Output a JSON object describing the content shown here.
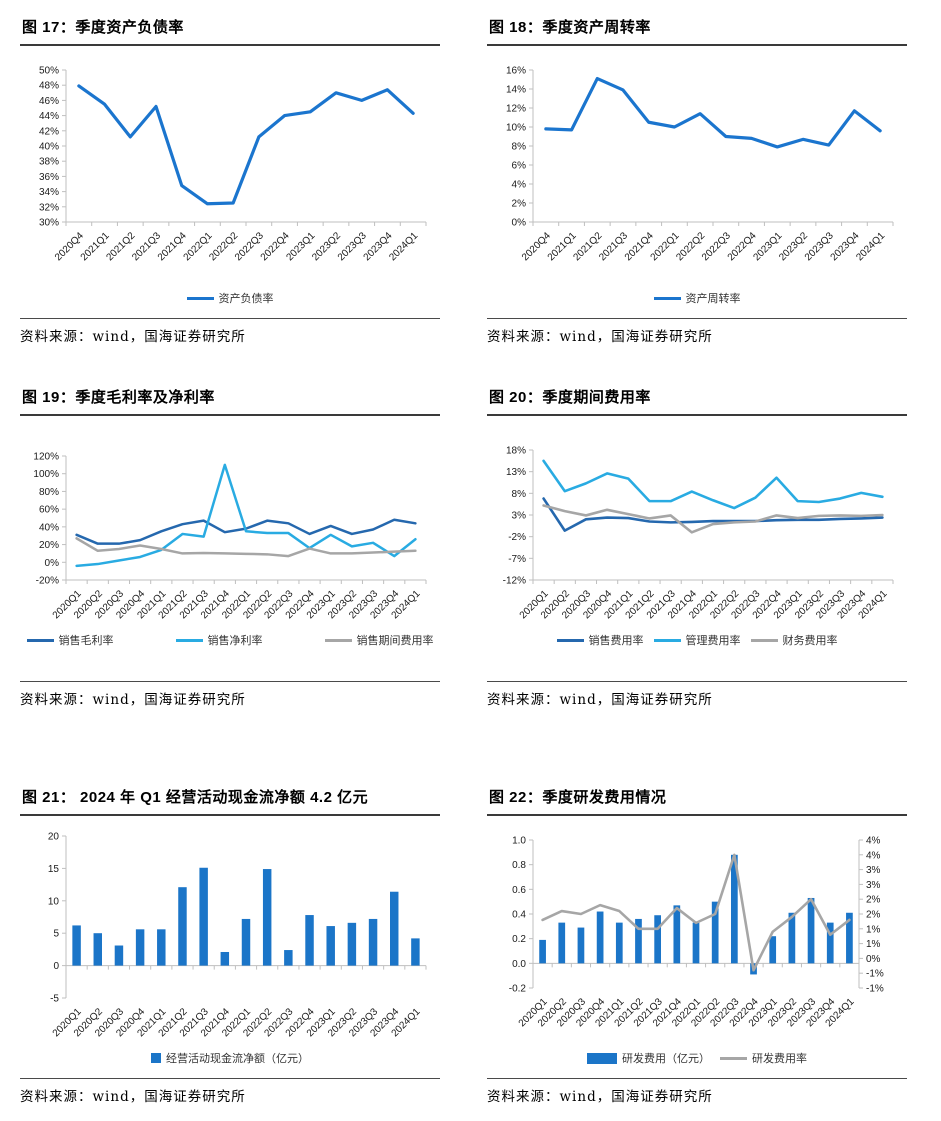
{
  "source_text": "资料来源：wind，国海证券研究所",
  "chart_data": [
    {
      "fig_label": "图 17：季度资产负债率",
      "title": "季度资产负债率",
      "type": "line",
      "categories": [
        "2020Q4",
        "2021Q1",
        "2021Q2",
        "2021Q3",
        "2021Q4",
        "2022Q1",
        "2022Q2",
        "2022Q3",
        "2022Q4",
        "2023Q1",
        "2023Q2",
        "2023Q3",
        "2023Q4",
        "2024Q1"
      ],
      "series": [
        {
          "name": "资产负债率",
          "type": "line",
          "marker": "line",
          "color": "#1B75CE",
          "values": [
            47.9,
            45.5,
            41.2,
            45.2,
            34.8,
            32.4,
            32.5,
            41.2,
            44.0,
            44.5,
            47.0,
            46.0,
            47.4,
            44.3
          ]
        }
      ],
      "ylim": [
        30,
        50
      ],
      "ystep": 2,
      "yfmt": "pct",
      "grid": false,
      "legend_position": "bottom"
    },
    {
      "fig_label": "图 18：季度资产周转率",
      "title": "季度资产周转率",
      "type": "line",
      "categories": [
        "2020Q4",
        "2021Q1",
        "2021Q2",
        "2021Q3",
        "2021Q4",
        "2022Q1",
        "2022Q2",
        "2022Q3",
        "2022Q4",
        "2023Q1",
        "2023Q2",
        "2023Q3",
        "2023Q4",
        "2024Q1"
      ],
      "series": [
        {
          "name": "资产周转率",
          "type": "line",
          "marker": "line",
          "color": "#1B75CE",
          "values": [
            9.8,
            9.7,
            15.1,
            13.9,
            10.5,
            10.0,
            11.4,
            9.0,
            8.8,
            7.9,
            8.7,
            8.1,
            11.7,
            9.6
          ]
        }
      ],
      "ylim": [
        0,
        16
      ],
      "ystep": 2,
      "yfmt": "pct",
      "grid": false,
      "legend_position": "bottom"
    },
    {
      "fig_label": "图 19：季度毛利率及净利率",
      "title": "季度毛利率及净利率",
      "type": "line",
      "categories": [
        "2020Q1",
        "2020Q2",
        "2020Q3",
        "2020Q4",
        "2021Q1",
        "2021Q2",
        "2021Q3",
        "2021Q4",
        "2022Q1",
        "2022Q2",
        "2022Q3",
        "2022Q4",
        "2023Q1",
        "2023Q2",
        "2023Q3",
        "2023Q4",
        "2024Q1"
      ],
      "series": [
        {
          "name": "销售毛利率",
          "type": "line",
          "marker": "line",
          "color": "#2568AE",
          "values": [
            31,
            21,
            21,
            25,
            35,
            43,
            47,
            34,
            38,
            47,
            44,
            32,
            41,
            32,
            37,
            48,
            44
          ]
        },
        {
          "name": "销售净利率",
          "type": "line",
          "marker": "line",
          "color": "#29ABE2",
          "values": [
            -4,
            -2,
            2,
            6,
            14,
            32,
            29,
            110,
            35,
            33,
            33,
            16,
            31,
            18,
            22,
            7,
            26
          ]
        },
        {
          "name": "销售期间费用率",
          "type": "line",
          "marker": "line",
          "color": "#A6A6A6",
          "values": [
            27,
            13,
            15,
            19,
            15,
            10,
            10.5,
            10,
            9.5,
            9,
            7,
            15.5,
            10,
            10,
            11,
            12,
            13
          ]
        }
      ],
      "ylim": [
        -20,
        120
      ],
      "ystep": 20,
      "yfmt": "pct",
      "grid": false,
      "legend_position": "bottom"
    },
    {
      "fig_label": "图 20：季度期间费用率",
      "title": "季度期间费用率",
      "type": "line",
      "categories": [
        "2020Q1",
        "2020Q2",
        "2020Q3",
        "2020Q4",
        "2021Q1",
        "2021Q2",
        "2021Q3",
        "2021Q4",
        "2022Q1",
        "2022Q2",
        "2022Q3",
        "2022Q4",
        "2023Q1",
        "2023Q2",
        "2023Q3",
        "2023Q4",
        "2024Q1"
      ],
      "series": [
        {
          "name": "销售费用率",
          "type": "line",
          "marker": "line",
          "color": "#2568AE",
          "values": [
            6.8,
            -0.6,
            2.0,
            2.4,
            2.3,
            1.5,
            1.3,
            1.4,
            1.6,
            1.6,
            1.6,
            1.8,
            1.9,
            1.9,
            2.1,
            2.2,
            2.4
          ]
        },
        {
          "name": "管理费用率",
          "type": "line",
          "marker": "line",
          "color": "#29ABE2",
          "values": [
            15.5,
            8.5,
            10.3,
            12.6,
            11.4,
            6.2,
            6.2,
            8.4,
            6.4,
            4.6,
            7.0,
            11.6,
            6.2,
            6.0,
            6.8,
            8.1,
            7.2
          ]
        },
        {
          "name": "财务费用率",
          "type": "line",
          "marker": "line",
          "color": "#A6A6A6",
          "values": [
            5.2,
            3.9,
            2.9,
            4.2,
            3.2,
            2.2,
            2.9,
            -1.0,
            0.9,
            1.3,
            1.5,
            2.9,
            2.3,
            2.8,
            2.9,
            2.8,
            3.0
          ]
        }
      ],
      "ylim": [
        -12,
        18
      ],
      "ystep": 5,
      "yfmt": "pct",
      "grid": false,
      "legend_position": "bottom"
    },
    {
      "fig_label": "图 21： 2024 年 Q1 经营活动现金流净额 4.2 亿元",
      "title": "2024 年 Q1 经营活动现金流净额 4.2 亿元",
      "type": "bar",
      "categories": [
        "2020Q1",
        "2020Q2",
        "2020Q3",
        "2020Q4",
        "2021Q1",
        "2021Q2",
        "2021Q3",
        "2021Q4",
        "2022Q1",
        "2022Q2",
        "2022Q3",
        "2022Q4",
        "2023Q1",
        "2023Q2",
        "2023Q3",
        "2023Q4",
        "2024Q1"
      ],
      "series": [
        {
          "name": "经营活动现金流净额（亿元）",
          "type": "bar",
          "marker": "square",
          "color": "#1B75C8",
          "values": [
            6.2,
            5.0,
            3.1,
            5.6,
            5.6,
            12.1,
            15.1,
            2.1,
            7.2,
            14.9,
            2.4,
            7.8,
            6.1,
            6.6,
            7.2,
            11.4,
            4.2
          ]
        }
      ],
      "ylim": [
        -5,
        20
      ],
      "ystep": 5,
      "yfmt": "int",
      "xaxis_at": 0,
      "grid": false,
      "legend_position": "bottom"
    },
    {
      "fig_label": "图 22：季度研发费用情况",
      "title": "季度研发费用情况",
      "type": "bar+line",
      "categories": [
        "2020Q1",
        "2020Q2",
        "2020Q3",
        "2020Q4",
        "2021Q1",
        "2021Q2",
        "2021Q3",
        "2021Q4",
        "2022Q1",
        "2022Q2",
        "2022Q3",
        "2022Q4",
        "2023Q1",
        "2023Q2",
        "2023Q3",
        "2023Q4",
        "2024Q1"
      ],
      "series": [
        {
          "name": "研发费用（亿元）",
          "type": "bar",
          "marker": "wide",
          "color": "#1B75C8",
          "axis": "left",
          "values": [
            0.19,
            0.33,
            0.29,
            0.42,
            0.33,
            0.36,
            0.39,
            0.47,
            0.33,
            0.5,
            0.88,
            -0.09,
            0.22,
            0.41,
            0.53,
            0.33,
            0.41
          ]
        },
        {
          "name": "研发费用率",
          "type": "line",
          "marker": "line",
          "color": "#A6A6A6",
          "axis": "right",
          "values": [
            1.3,
            1.6,
            1.5,
            1.8,
            1.6,
            1.0,
            1.0,
            1.7,
            1.2,
            1.5,
            3.5,
            -0.4,
            0.9,
            1.4,
            2.0,
            0.8,
            1.3
          ]
        }
      ],
      "ylim": [
        -0.2,
        1.0
      ],
      "ystep": 0.2,
      "yfmt": "dec1",
      "xaxis_at": 0,
      "grid": false,
      "legend_position": "bottom",
      "right_axis": {
        "ylim": [
          -1,
          4
        ],
        "labels": [
          "4%",
          "4%",
          "3%",
          "3%",
          "2%",
          "2%",
          "1%",
          "1%",
          "0%",
          "-1%",
          "-1%"
        ],
        "label_values": [
          4,
          3.5,
          3,
          2.5,
          2,
          1.5,
          1,
          0.5,
          0,
          -0.5,
          -1
        ]
      }
    }
  ]
}
